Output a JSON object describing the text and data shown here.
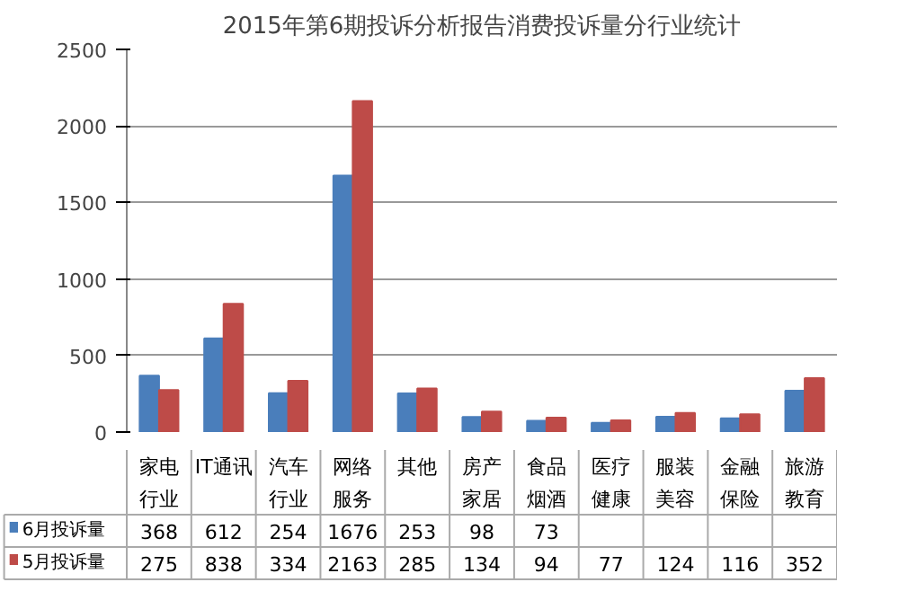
{
  "chart_data": {
    "type": "bar",
    "title": "2015年第6期投诉分析报告消费投诉量分行业统计",
    "categories": [
      "家电行业",
      "IT通讯",
      "汽车行业",
      "网络服务",
      "其他",
      "房产家居",
      "食品烟酒",
      "医疗健康",
      "服装美容",
      "金融保险",
      "旅游教育"
    ],
    "series": [
      {
        "name": "6月投诉量",
        "color": "#4a7ebb",
        "values": [
          368,
          612,
          254,
          1676,
          253,
          98,
          73,
          60,
          100,
          90,
          270
        ],
        "value_labels": [
          "368",
          "612",
          "254",
          "1676",
          "253",
          "98",
          "73",
          null,
          null,
          null,
          null
        ]
      },
      {
        "name": "5月投诉量",
        "color": "#be4b48",
        "values": [
          275,
          838,
          334,
          2163,
          285,
          134,
          94,
          77,
          124,
          116,
          352
        ],
        "value_labels": [
          "275",
          "838",
          "334",
          "2163",
          "285",
          "134",
          "94",
          "77",
          "124",
          "116",
          "352"
        ]
      }
    ],
    "ylim": [
      0,
      2500
    ],
    "yticks": [
      0,
      500,
      1000,
      1500,
      2000,
      2500
    ],
    "grid": "y",
    "legend": "bottom"
  }
}
